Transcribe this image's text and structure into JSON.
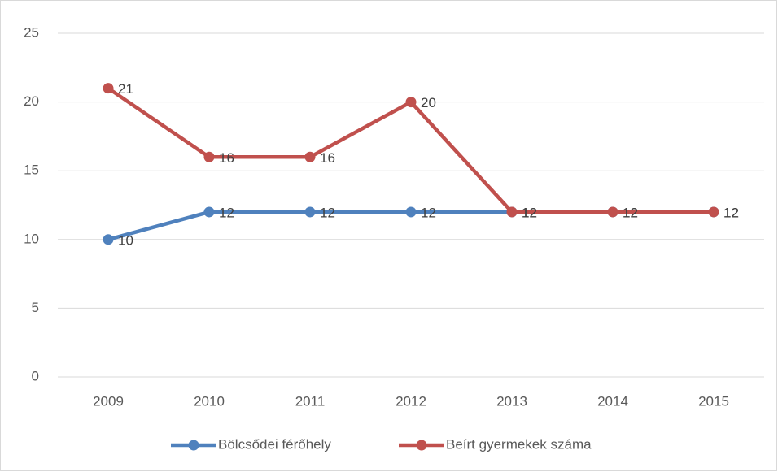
{
  "chart_data": {
    "type": "line",
    "categories": [
      "2009",
      "2010",
      "2011",
      "2012",
      "2013",
      "2014",
      "2015"
    ],
    "series": [
      {
        "name": "Bölcsődei férőhely",
        "color": "#4f81bd",
        "values": [
          10,
          12,
          12,
          12,
          12,
          12,
          12
        ]
      },
      {
        "name": "Beírt gyermekek száma",
        "color": "#c0504d",
        "values": [
          21,
          16,
          16,
          20,
          12,
          12,
          12
        ]
      }
    ],
    "ylim": [
      0,
      25
    ],
    "yticks": [
      0,
      5,
      10,
      15,
      20,
      25
    ],
    "grid": true,
    "legend": "bottom"
  }
}
